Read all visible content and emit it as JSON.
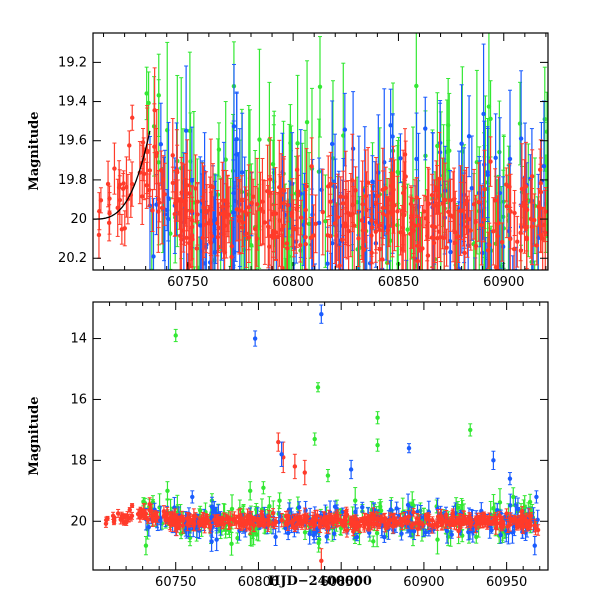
{
  "chart_data": [
    {
      "type": "scatter",
      "panel": "top",
      "xlabel": "",
      "ylabel": "Magnitude",
      "xlim": [
        60705,
        60921
      ],
      "ylim": [
        20.26,
        19.05
      ],
      "y_inverted": true,
      "xticks": [
        60750,
        60800,
        60850,
        60900
      ],
      "xtick_labels": [
        "60750",
        "60800",
        "60850",
        "60900"
      ],
      "yticks": [
        19.2,
        19.4,
        19.6,
        19.8,
        20,
        20.2
      ],
      "ytick_labels": [
        "19.2",
        "19.4",
        "19.6",
        "19.8",
        "20",
        "20.2"
      ],
      "series": [
        {
          "name": "green",
          "color": "#33e833"
        },
        {
          "name": "blue",
          "color": "#1a5cff"
        },
        {
          "name": "red",
          "color": "#ff3b2a"
        }
      ],
      "model_curve": {
        "name": "model",
        "color": "#000000",
        "baseline": 20.0,
        "peak": 19.55,
        "peak_x": 60732,
        "fall_x": 60770
      }
    },
    {
      "type": "scatter",
      "panel": "bottom",
      "xlabel": "HJD−2400000",
      "ylabel": "Magnitude",
      "xlim": [
        60700,
        60975
      ],
      "ylim": [
        21.6,
        12.8
      ],
      "y_inverted": true,
      "xticks": [
        60750,
        60800,
        60850,
        60900,
        60950
      ],
      "xtick_labels": [
        "60750",
        "60800",
        "60850",
        "60900",
        "60950"
      ],
      "yticks": [
        14,
        16,
        18,
        20
      ],
      "ytick_labels": [
        "14",
        "16",
        "18",
        "20"
      ],
      "series": [
        {
          "name": "green",
          "color": "#33e833"
        },
        {
          "name": "blue",
          "color": "#1a5cff"
        },
        {
          "name": "red",
          "color": "#ff3b2a"
        }
      ],
      "outliers": [
        {
          "series": "green",
          "x": 60750,
          "y": 13.9,
          "err": 0.2
        },
        {
          "series": "blue",
          "x": 60798,
          "y": 14.0,
          "err": 0.25
        },
        {
          "series": "blue",
          "x": 60838,
          "y": 13.2,
          "err": 0.3
        },
        {
          "series": "green",
          "x": 60836,
          "y": 15.6,
          "err": 0.15
        },
        {
          "series": "green",
          "x": 60872,
          "y": 16.6,
          "err": 0.2
        },
        {
          "series": "green",
          "x": 60872,
          "y": 17.5,
          "err": 0.2
        },
        {
          "series": "green",
          "x": 60834,
          "y": 17.3,
          "err": 0.2
        },
        {
          "series": "green",
          "x": 60928,
          "y": 17.0,
          "err": 0.2
        },
        {
          "series": "blue",
          "x": 60891,
          "y": 17.6,
          "err": 0.15
        },
        {
          "series": "blue",
          "x": 60942,
          "y": 18.0,
          "err": 0.3
        },
        {
          "series": "red",
          "x": 60812,
          "y": 17.4,
          "err": 0.3
        },
        {
          "series": "red",
          "x": 60815,
          "y": 17.9,
          "err": 0.5
        },
        {
          "series": "red",
          "x": 60828,
          "y": 18.4,
          "err": 0.4
        },
        {
          "series": "red",
          "x": 60822,
          "y": 18.2,
          "err": 0.4
        },
        {
          "series": "blue",
          "x": 60814,
          "y": 17.8,
          "err": 0.4
        },
        {
          "series": "green",
          "x": 60803,
          "y": 18.9,
          "err": 0.2
        },
        {
          "series": "blue",
          "x": 60856,
          "y": 18.3,
          "err": 0.3
        },
        {
          "series": "green",
          "x": 60842,
          "y": 18.5,
          "err": 0.2
        },
        {
          "series": "green",
          "x": 60795,
          "y": 19.0,
          "err": 0.3
        },
        {
          "series": "green",
          "x": 60745,
          "y": 19.0,
          "err": 0.3
        },
        {
          "series": "blue",
          "x": 60760,
          "y": 19.2,
          "err": 0.2
        },
        {
          "series": "blue",
          "x": 60952,
          "y": 18.6,
          "err": 0.2
        },
        {
          "series": "green",
          "x": 60954,
          "y": 19.2,
          "err": 0.3
        },
        {
          "series": "blue",
          "x": 60968,
          "y": 19.2,
          "err": 0.2
        },
        {
          "series": "blue",
          "x": 60967,
          "y": 20.8,
          "err": 0.3
        },
        {
          "series": "green",
          "x": 60732,
          "y": 20.8,
          "err": 0.3
        },
        {
          "series": "red",
          "x": 60838,
          "y": 21.3,
          "err": 0.4
        }
      ]
    }
  ]
}
